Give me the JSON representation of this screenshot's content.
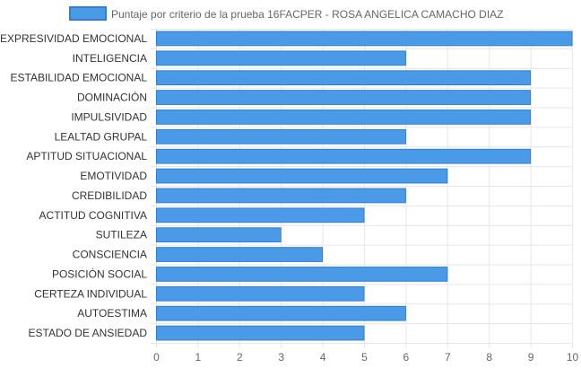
{
  "chart_data": {
    "type": "bar",
    "orientation": "horizontal",
    "categories": [
      "EXPRESIVIDAD EMOCIONAL",
      "INTELIGENCIA",
      "ESTABILIDAD EMOCIONAL",
      "DOMINACIÓN",
      "IMPULSIVIDAD",
      "LEALTAD GRUPAL",
      "APTITUD SITUACIONAL",
      "EMOTIVIDAD",
      "CREDIBILIDAD",
      "ACTITUD COGNITIVA",
      "SUTILEZA",
      "CONSCIENCIA",
      "POSICIÓN SOCIAL",
      "CERTEZA INDIVIDUAL",
      "AUTOESTIMA",
      "ESTADO DE ANSIEDAD"
    ],
    "series": [
      {
        "name": "Puntaje por criterio de la prueba 16FACPER - ROSA ANGELICA CAMACHO DIAZ",
        "values": [
          10,
          6,
          9,
          9,
          9,
          6,
          9,
          7,
          6,
          5,
          3,
          4,
          7,
          5,
          6,
          5
        ]
      }
    ],
    "xlim": [
      0,
      10
    ],
    "xticks": [
      "0",
      "1",
      "2",
      "3",
      "4",
      "5",
      "6",
      "7",
      "8",
      "9",
      "10"
    ],
    "grid": true,
    "legend": "top-center",
    "colors": {
      "bar_fill": "#4a9ae8",
      "bar_stroke": "#2f7fd6",
      "grid": "#e6e6e6"
    }
  }
}
